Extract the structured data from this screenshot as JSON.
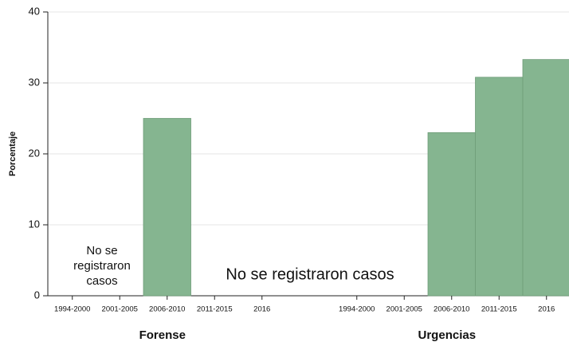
{
  "chart_data": {
    "type": "bar",
    "ylabel": "Porcentaje",
    "categories": [
      "1994-2000",
      "2001-2005",
      "2006-2010",
      "2011-2015",
      "2016"
    ],
    "series": [
      {
        "name": "Forense",
        "color": "#85b590",
        "values": [
          0,
          0,
          25,
          0,
          0
        ]
      },
      {
        "name": "Urgencias",
        "color": "#85b590",
        "values": [
          0,
          0,
          23,
          30.8,
          33.3
        ]
      }
    ],
    "ylim": [
      0,
      40
    ],
    "yticks": [
      0,
      10,
      20,
      30,
      40
    ],
    "grid": true,
    "annotations": [
      {
        "lines": [
          "No se",
          "registraron",
          "casos"
        ]
      },
      {
        "lines": [
          "No se  registraron casos"
        ]
      }
    ]
  }
}
